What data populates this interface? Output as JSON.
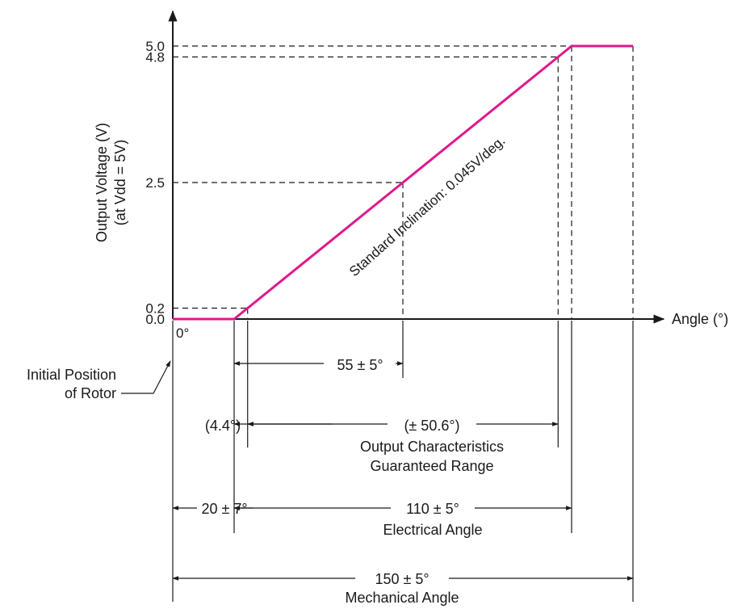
{
  "chart_data": {
    "type": "line",
    "x_axis": {
      "label": "Angle (°)",
      "origin_label": "0°"
    },
    "y_axis": {
      "label_line1": "Output Voltage (V)",
      "label_line2": "(at Vdd = 5V)",
      "ticks": [
        "0.0",
        "0.2",
        "2.5",
        "4.8",
        "5.0"
      ],
      "tick_values": [
        0.0,
        0.2,
        2.5,
        4.8,
        5.0
      ],
      "range": [
        0,
        5
      ]
    },
    "series": [
      {
        "color": "#e0188c",
        "points": [
          [
            0,
            0.0
          ],
          [
            20,
            0.0
          ],
          [
            24.4,
            0.2
          ],
          [
            75,
            2.5
          ],
          [
            125.6,
            4.8
          ],
          [
            130,
            5.0
          ],
          [
            150,
            5.0
          ]
        ]
      }
    ],
    "x_marks": [
      0,
      20,
      24.4,
      75,
      125.6,
      130,
      150
    ],
    "x_range": [
      0,
      150
    ],
    "slope_label": "Standard Inclination: 0.045V/deg.",
    "annotations": {
      "initial_position": {
        "line1": "Initial Position",
        "line2": "of Rotor"
      },
      "dim_55": "55 ± 5°",
      "dim_4_4": "(4.4°)",
      "dim_50_6": "(± 50.6°)",
      "guaranteed_line1": "Output Characteristics",
      "guaranteed_line2": "Guaranteed Range",
      "dim_20": "20 ± 7°",
      "dim_110": "110 ± 5°",
      "electrical": "Electrical Angle",
      "dim_150": "150 ± 5°",
      "mechanical": "Mechanical Angle"
    }
  }
}
